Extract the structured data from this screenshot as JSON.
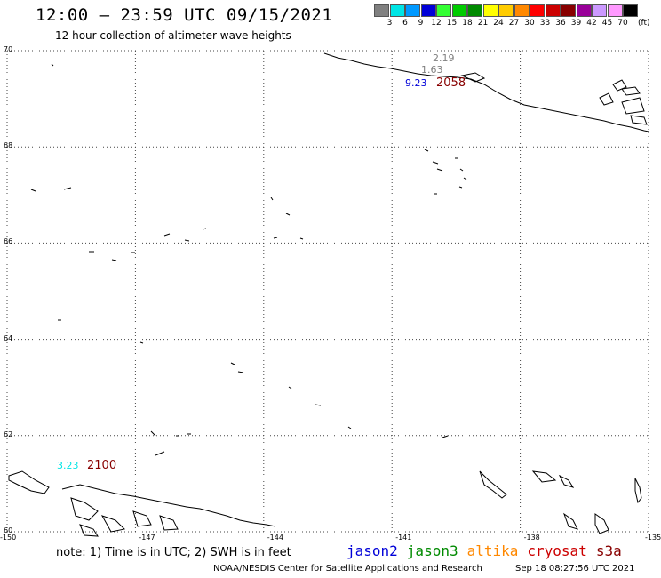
{
  "header": {
    "title": "12:00 – 23:59 UTC 09/15/2021",
    "subtitle": "12 hour collection of altimeter wave heights"
  },
  "legend": {
    "unit": "(ft)",
    "bins": [
      {
        "label": "3",
        "color": "#808080"
      },
      {
        "label": "6",
        "color": "#00e5e5"
      },
      {
        "label": "9",
        "color": "#0099ff"
      },
      {
        "label": "12",
        "color": "#0000d8"
      },
      {
        "label": "15",
        "color": "#33ff33"
      },
      {
        "label": "18",
        "color": "#00cc00"
      },
      {
        "label": "21",
        "color": "#008a00"
      },
      {
        "label": "24",
        "color": "#ffff00"
      },
      {
        "label": "27",
        "color": "#ffcc00"
      },
      {
        "label": "30",
        "color": "#ff8800"
      },
      {
        "label": "33",
        "color": "#ff0000"
      },
      {
        "label": "36",
        "color": "#cc0000"
      },
      {
        "label": "39",
        "color": "#880000"
      },
      {
        "label": "42",
        "color": "#990099"
      },
      {
        "label": "45",
        "color": "#cc99ff"
      },
      {
        "label": "70",
        "color": "#ff99ff"
      },
      {
        "label": "",
        "color": "#000000"
      }
    ]
  },
  "axes": {
    "latitudes": [
      "70",
      "68",
      "66",
      "64",
      "62",
      "60"
    ],
    "longitudes": [
      "-150",
      "-147",
      "-144",
      "-141",
      "-138",
      "-135"
    ]
  },
  "observations": [
    {
      "text": "2.19",
      "color": "#808080"
    },
    {
      "text": "1.63",
      "color": "#808080"
    },
    {
      "text": "9.23",
      "color": "#0000d8"
    },
    {
      "text": "2058",
      "color": "#880000"
    },
    {
      "text": "3.23",
      "color": "#00e5e5"
    },
    {
      "text": "2100",
      "color": "#880000"
    }
  ],
  "notes": {
    "text": "note:  1) Time is in UTC;  2) SWH is in feet"
  },
  "satellites": [
    {
      "name": "jason2",
      "color": "#0000d8"
    },
    {
      "name": "jason3",
      "color": "#008a00"
    },
    {
      "name": "altika",
      "color": "#ff8800"
    },
    {
      "name": "cryosat",
      "color": "#cc0000"
    },
    {
      "name": "s3a",
      "color": "#880000"
    }
  ],
  "footer": {
    "credit": "NOAA/NESDIS Center for Satellite Applications and Research",
    "timestamp": "Sep 18 08:27:56 UTC 2021"
  }
}
